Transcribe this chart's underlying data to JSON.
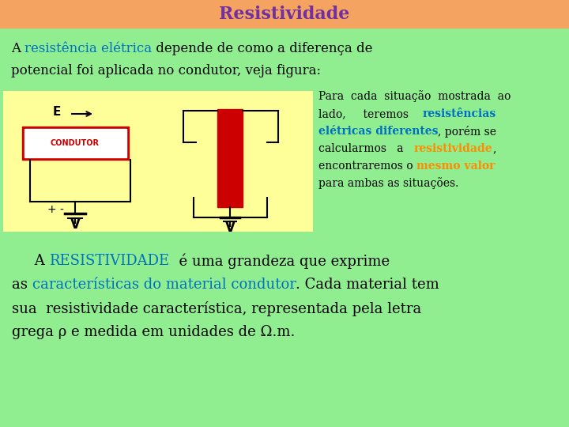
{
  "title": "Resistividade",
  "title_color": "#7030A0",
  "title_bg": "#F4A460",
  "main_bg": "#90EE90",
  "diagram_bg": "#FFFF99",
  "condutor_label": "CONDUTOR",
  "e_label": "E",
  "v_label": "V",
  "plus_minus": "+ -",
  "right_text_line1": "Para  cada  situação  mostrada  ao",
  "right_text_line6": "para ambas as situações.",
  "bottom_text_line3": "sua  resistividade característica, representada pela letra",
  "bottom_text_line4": "grega ρ e medida em unidades de Ω.m."
}
